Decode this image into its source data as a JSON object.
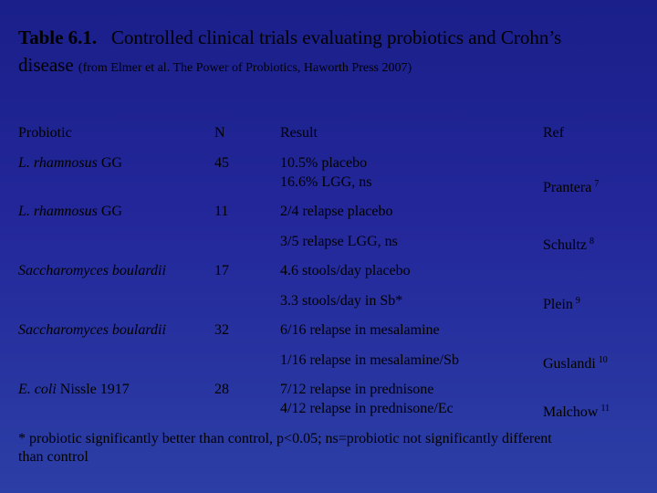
{
  "title": {
    "bold": "Table 6.1.",
    "main_a": "Controlled clinical trials evaluating probiotics and Crohn’s",
    "main_b": "disease",
    "source": "(from Elmer et al. The Power of Probiotics, Haworth Press 2007)"
  },
  "headers": {
    "probiotic": "Probiotic",
    "n": "N",
    "result": "Result",
    "ref": "Ref"
  },
  "rows": [
    {
      "probiotic_italic": "L. rhamnosus",
      "probiotic_rest": " GG",
      "n": "45",
      "result1": "10.5%  placebo",
      "result2": "16.6% LGG, ns",
      "result3": "",
      "ref": "Prantera",
      "ref_sup": "7"
    },
    {
      "probiotic_italic": "L. rhamnosus",
      "probiotic_rest": " GG",
      "n": "11",
      "result1": "2/4 relapse placebo",
      "result2": "3/5 relapse LGG, ns",
      "result3": "",
      "ref": "Schultz",
      "ref_sup": "8"
    },
    {
      "probiotic_italic": "Saccharomyces boulardii",
      "probiotic_rest": "",
      "n": "17",
      "result1": "4.6 stools/day placebo",
      "result2": "3.3  stools/day  in Sb*",
      "result3": "",
      "ref": "Plein",
      "ref_sup": "9"
    },
    {
      "probiotic_italic": "Saccharomyces boulardii",
      "probiotic_rest": "",
      "n": "32",
      "result1": "6/16 relapse in mesalamine",
      "result2": "1/16 relapse in mesalamine/Sb",
      "result3": "",
      "ref": "Guslandi",
      "ref_sup": "10"
    },
    {
      "probiotic_italic": "E. coli",
      "probiotic_rest": " Nissle 1917",
      "n": "28",
      "result1": "7/12 relapse in prednisone",
      "result2": "4/12 relapse in prednisone/Ec",
      "result3": "",
      "ref": "Malchow",
      "ref_sup": "11"
    }
  ],
  "footnote": {
    "line1": " * probiotic significantly better than control, p<0.05; ns=probiotic not significantly different",
    "line2": "than control"
  }
}
